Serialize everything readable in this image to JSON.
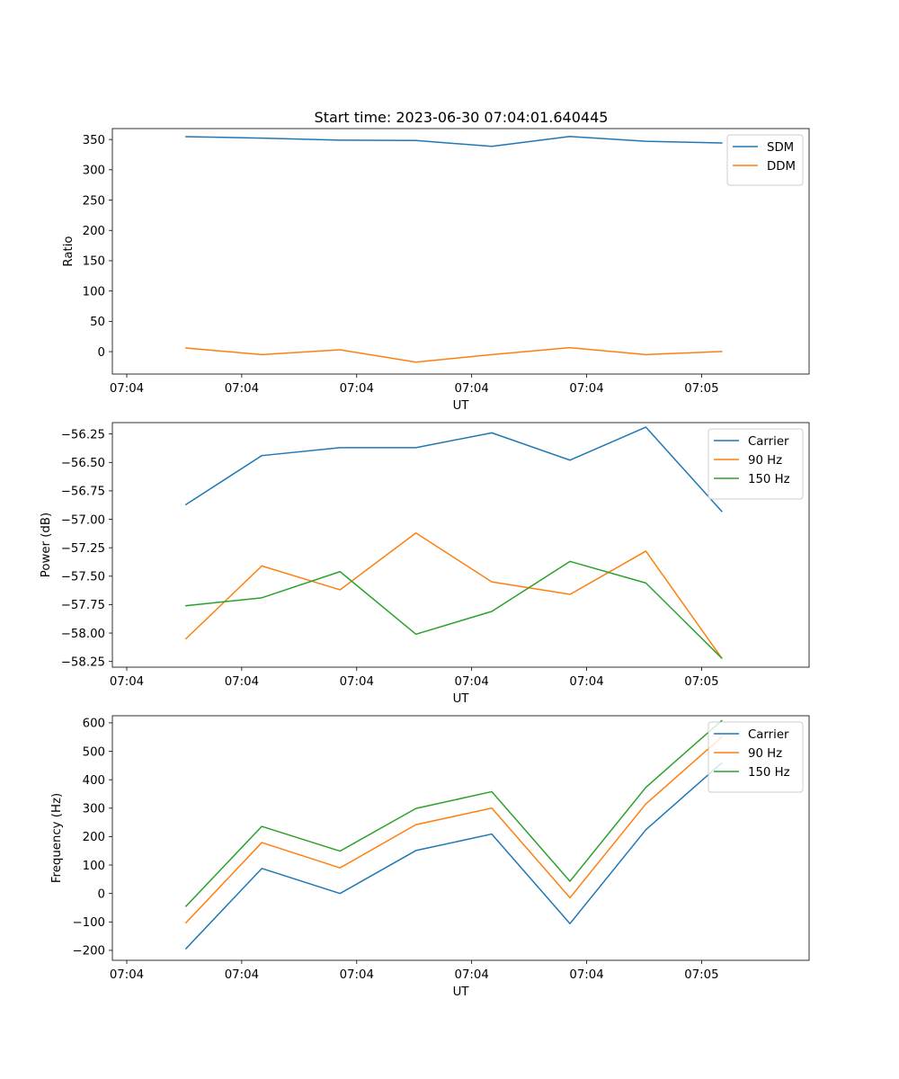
{
  "figure": {
    "title": "Start time: 2023-06-30 07:04:01.640445"
  },
  "colors": {
    "blue": "#1f77b4",
    "orange": "#ff7f0e",
    "green": "#2ca02c"
  },
  "chart_data": [
    {
      "type": "line",
      "title": "Start time: 2023-06-30 07:04:01.640445",
      "xlabel": "UT",
      "ylabel": "Ratio",
      "x_unit": "seconds after 07:04:00",
      "xlim": [
        1.0,
        7.06
      ],
      "ylim": [
        -37,
        368
      ],
      "x_ticks": [
        {
          "x": 1.125,
          "label": "07:04"
        },
        {
          "x": 2.125,
          "label": "07:04"
        },
        {
          "x": 3.125,
          "label": "07:04"
        },
        {
          "x": 4.125,
          "label": "07:04"
        },
        {
          "x": 5.125,
          "label": "07:04"
        },
        {
          "x": 6.125,
          "label": "07:05"
        }
      ],
      "y_ticks": [
        {
          "y": 0,
          "label": "0"
        },
        {
          "y": 50,
          "label": "50"
        },
        {
          "y": 100,
          "label": "100"
        },
        {
          "y": 150,
          "label": "150"
        },
        {
          "y": 200,
          "label": "200"
        },
        {
          "y": 250,
          "label": "250"
        },
        {
          "y": 300,
          "label": "300"
        },
        {
          "y": 350,
          "label": "350"
        }
      ],
      "x": [
        1.64,
        2.3,
        2.98,
        3.64,
        4.3,
        4.98,
        5.64,
        6.3
      ],
      "legend_position": "upper right",
      "grid": false,
      "series": [
        {
          "name": "SDM",
          "color": "#1f77b4",
          "values": [
            354.7,
            352.2,
            348.9,
            348.3,
            338.7,
            355.0,
            347.0,
            344.3
          ]
        },
        {
          "name": "DDM",
          "color": "#ff7f0e",
          "values": [
            6.0,
            -5.0,
            3.0,
            -17.3,
            -5.0,
            6.5,
            -5.0,
            0.3
          ]
        }
      ]
    },
    {
      "type": "line",
      "title": "",
      "xlabel": "UT",
      "ylabel": "Power (dB)",
      "x_unit": "seconds after 07:04:00",
      "xlim": [
        1.0,
        7.06
      ],
      "ylim": [
        -58.3,
        -56.15
      ],
      "x_ticks": [
        {
          "x": 1.125,
          "label": "07:04"
        },
        {
          "x": 2.125,
          "label": "07:04"
        },
        {
          "x": 3.125,
          "label": "07:04"
        },
        {
          "x": 4.125,
          "label": "07:04"
        },
        {
          "x": 5.125,
          "label": "07:04"
        },
        {
          "x": 6.125,
          "label": "07:05"
        }
      ],
      "y_ticks": [
        {
          "y": -58.25,
          "label": "−58.25"
        },
        {
          "y": -58.0,
          "label": "−58.00"
        },
        {
          "y": -57.75,
          "label": "−57.75"
        },
        {
          "y": -57.5,
          "label": "−57.50"
        },
        {
          "y": -57.25,
          "label": "−57.25"
        },
        {
          "y": -57.0,
          "label": "−57.00"
        },
        {
          "y": -56.75,
          "label": "−56.75"
        },
        {
          "y": -56.5,
          "label": "−56.50"
        },
        {
          "y": -56.25,
          "label": "−56.25"
        }
      ],
      "x": [
        1.64,
        2.3,
        2.98,
        3.64,
        4.3,
        4.98,
        5.64,
        6.3
      ],
      "legend_position": "upper right",
      "grid": false,
      "series": [
        {
          "name": "Carrier",
          "color": "#1f77b4",
          "values": [
            -56.87,
            -56.44,
            -56.37,
            -56.37,
            -56.24,
            -56.48,
            -56.19,
            -56.93
          ]
        },
        {
          "name": "90 Hz",
          "color": "#ff7f0e",
          "values": [
            -58.05,
            -57.41,
            -57.62,
            -57.12,
            -57.55,
            -57.66,
            -57.28,
            -58.22
          ]
        },
        {
          "name": "150 Hz",
          "color": "#2ca02c",
          "values": [
            -57.76,
            -57.69,
            -57.46,
            -58.01,
            -57.81,
            -57.37,
            -57.56,
            -58.22
          ]
        }
      ]
    },
    {
      "type": "line",
      "title": "",
      "xlabel": "UT",
      "ylabel": "Frequency (Hz)",
      "x_unit": "seconds after 07:04:00",
      "xlim": [
        1.0,
        7.06
      ],
      "ylim": [
        -235,
        625
      ],
      "x_ticks": [
        {
          "x": 1.125,
          "label": "07:04"
        },
        {
          "x": 2.125,
          "label": "07:04"
        },
        {
          "x": 3.125,
          "label": "07:04"
        },
        {
          "x": 4.125,
          "label": "07:04"
        },
        {
          "x": 5.125,
          "label": "07:04"
        },
        {
          "x": 6.125,
          "label": "07:05"
        }
      ],
      "y_ticks": [
        {
          "y": -200,
          "label": "−200"
        },
        {
          "y": -100,
          "label": "−100"
        },
        {
          "y": 0,
          "label": "0"
        },
        {
          "y": 100,
          "label": "100"
        },
        {
          "y": 200,
          "label": "200"
        },
        {
          "y": 300,
          "label": "300"
        },
        {
          "y": 400,
          "label": "400"
        },
        {
          "y": 500,
          "label": "500"
        },
        {
          "y": 600,
          "label": "600"
        }
      ],
      "x": [
        1.64,
        2.3,
        2.98,
        3.64,
        4.3,
        4.98,
        5.64,
        6.3
      ],
      "legend_position": "upper right",
      "grid": false,
      "series": [
        {
          "name": "Carrier",
          "color": "#1f77b4",
          "values": [
            -194,
            88,
            0,
            151,
            209,
            -106,
            224,
            459
          ]
        },
        {
          "name": "90 Hz",
          "color": "#ff7f0e",
          "values": [
            -103,
            179,
            90,
            242,
            300,
            -15,
            315,
            550
          ]
        },
        {
          "name": "150 Hz",
          "color": "#2ca02c",
          "values": [
            -45,
            236,
            149,
            299,
            358,
            43,
            373,
            608
          ]
        }
      ]
    }
  ]
}
